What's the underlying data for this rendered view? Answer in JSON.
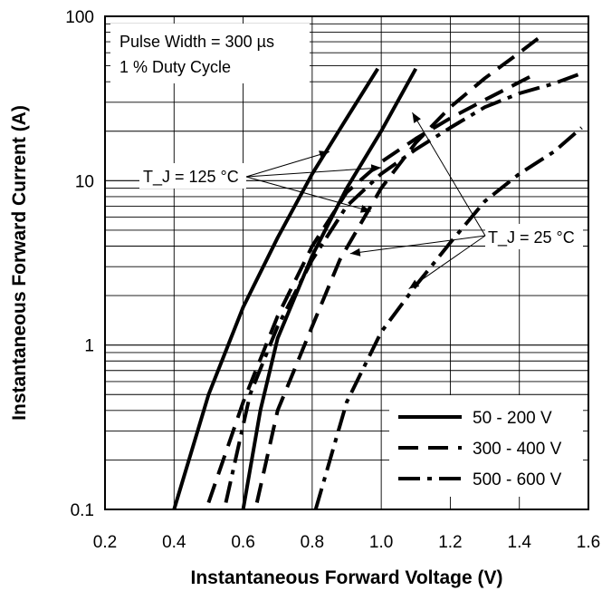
{
  "chart_data": {
    "type": "line",
    "xlabel": "Instantaneous Forward Voltage (V)",
    "ylabel": "Instantaneous Forward Current (A)",
    "xlim": [
      0.2,
      1.6
    ],
    "ylim": [
      0.1,
      100
    ],
    "yscale": "log",
    "xticks": [
      "0.2",
      "0.4",
      "0.6",
      "0.8",
      "1.0",
      "1.2",
      "1.4",
      "1.6"
    ],
    "yticks": [
      "0.1",
      "1",
      "10",
      "100"
    ],
    "grid": true,
    "legend_placement": "bottom-right",
    "note_lines": [
      "Pulse Width = 300 µs",
      "1 % Duty Cycle"
    ],
    "annotations": {
      "tj_hot": "T_J = 125 °C",
      "tj_cold": "T_J = 25 °C"
    },
    "legend": [
      {
        "label": "50 - 200 V",
        "style": "solid"
      },
      {
        "label": "300 - 400 V",
        "style": "dashed"
      },
      {
        "label": "500 - 600 V",
        "style": "dashdot"
      }
    ],
    "series": [
      {
        "group": "50 - 200 V",
        "condition": "TJ 125 °C",
        "style": "solid",
        "points": [
          [
            0.4,
            0.1
          ],
          [
            0.5,
            0.5
          ],
          [
            0.6,
            1.7
          ],
          [
            0.7,
            4.5
          ],
          [
            0.8,
            11
          ],
          [
            0.9,
            24
          ],
          [
            0.99,
            48
          ]
        ]
      },
      {
        "group": "50 - 200 V",
        "condition": "TJ 25 °C",
        "style": "solid",
        "points": [
          [
            0.6,
            0.1
          ],
          [
            0.65,
            0.4
          ],
          [
            0.7,
            1.1
          ],
          [
            0.8,
            3.5
          ],
          [
            0.9,
            9
          ],
          [
            1.0,
            20
          ],
          [
            1.1,
            48
          ]
        ]
      },
      {
        "group": "300 - 400 V",
        "condition": "TJ 125 °C",
        "style": "dashed",
        "points": [
          [
            0.5,
            0.11
          ],
          [
            0.6,
            0.45
          ],
          [
            0.7,
            1.5
          ],
          [
            0.8,
            4
          ],
          [
            0.9,
            8.5
          ],
          [
            1.0,
            13
          ],
          [
            1.1,
            18
          ],
          [
            1.2,
            24
          ],
          [
            1.3,
            31
          ],
          [
            1.45,
            45
          ]
        ]
      },
      {
        "group": "300 - 400 V",
        "condition": "TJ 25 °C",
        "style": "dashed",
        "points": [
          [
            0.64,
            0.11
          ],
          [
            0.7,
            0.4
          ],
          [
            0.8,
            1.3
          ],
          [
            0.88,
            3.3
          ],
          [
            1.0,
            9
          ],
          [
            1.1,
            17
          ],
          [
            1.2,
            28
          ],
          [
            1.3,
            42
          ],
          [
            1.4,
            60
          ],
          [
            1.46,
            75
          ]
        ]
      },
      {
        "group": "500 - 600 V",
        "condition": "TJ 125 °C",
        "style": "dashdot",
        "points": [
          [
            0.55,
            0.11
          ],
          [
            0.62,
            0.5
          ],
          [
            0.7,
            1.3
          ],
          [
            0.8,
            3.3
          ],
          [
            0.9,
            7
          ],
          [
            1.0,
            11
          ],
          [
            1.1,
            15.5
          ],
          [
            1.2,
            21
          ],
          [
            1.3,
            28
          ],
          [
            1.4,
            34
          ],
          [
            1.5,
            39
          ],
          [
            1.58,
            45
          ]
        ]
      },
      {
        "group": "500 - 600 V",
        "condition": "TJ 25 °C",
        "style": "dashdot",
        "points": [
          [
            0.81,
            0.1
          ],
          [
            0.9,
            0.45
          ],
          [
            1.0,
            1.2
          ],
          [
            1.1,
            2.3
          ],
          [
            1.2,
            4.2
          ],
          [
            1.3,
            7.5
          ],
          [
            1.4,
            11
          ],
          [
            1.5,
            15
          ],
          [
            1.58,
            21
          ]
        ]
      }
    ]
  }
}
